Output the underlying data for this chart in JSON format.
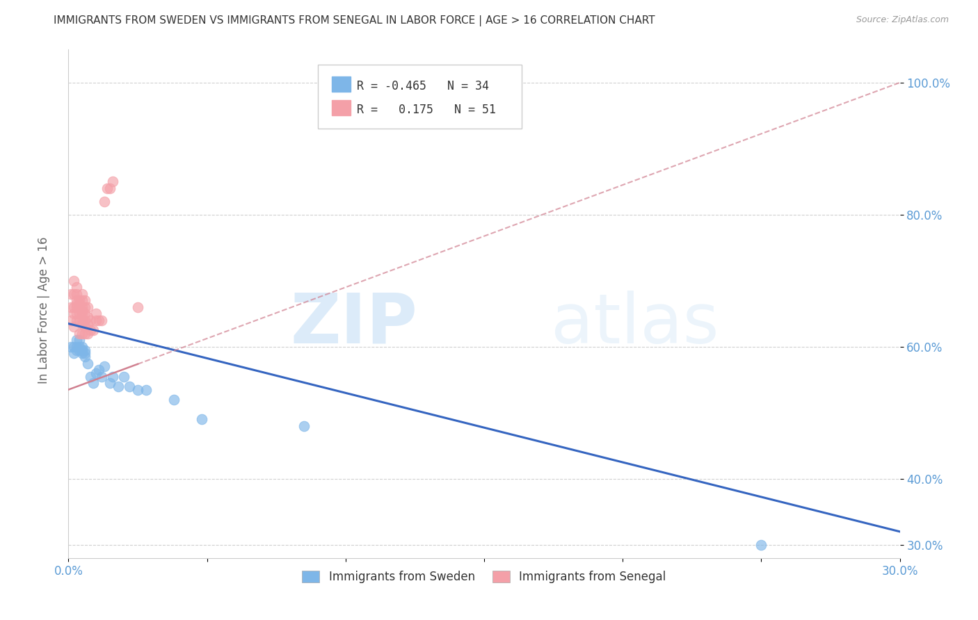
{
  "title": "IMMIGRANTS FROM SWEDEN VS IMMIGRANTS FROM SENEGAL IN LABOR FORCE | AGE > 16 CORRELATION CHART",
  "source": "Source: ZipAtlas.com",
  "ylabel": "In Labor Force | Age > 16",
  "xlim": [
    0.0,
    0.3
  ],
  "ylim": [
    0.28,
    1.05
  ],
  "xticks": [
    0.0,
    0.05,
    0.1,
    0.15,
    0.2,
    0.25,
    0.3
  ],
  "xticklabels": [
    "0.0%",
    "",
    "",
    "",
    "",
    "",
    "30.0%"
  ],
  "yticks": [
    0.3,
    0.4,
    0.6,
    0.8,
    1.0
  ],
  "yticklabels": [
    "30.0%",
    "40.0%",
    "60.0%",
    "80.0%",
    "100.0%"
  ],
  "sweden_color": "#7EB6E8",
  "senegal_color": "#F4A0A8",
  "sweden_line_color": "#3565C0",
  "senegal_line_color": "#D08090",
  "legend_R_sweden": "-0.465",
  "legend_N_sweden": "34",
  "legend_R_senegal": "0.175",
  "legend_N_senegal": "51",
  "legend_label_sweden": "Immigrants from Sweden",
  "legend_label_senegal": "Immigrants from Senegal",
  "watermark_zip": "ZIP",
  "watermark_atlas": "atlas",
  "background_color": "#ffffff",
  "grid_color": "#d0d0d0",
  "axis_label_color": "#5b9bd5",
  "title_color": "#333333",
  "sweden_line_x0": 0.0,
  "sweden_line_y0": 0.635,
  "sweden_line_x1": 0.3,
  "sweden_line_y1": 0.32,
  "senegal_line_x0": 0.0,
  "senegal_line_y0": 0.535,
  "senegal_line_x1": 0.3,
  "senegal_line_y1": 1.0,
  "sweden_scatter_x": [
    0.001,
    0.002,
    0.002,
    0.003,
    0.003,
    0.003,
    0.004,
    0.004,
    0.004,
    0.005,
    0.005,
    0.005,
    0.005,
    0.006,
    0.006,
    0.006,
    0.007,
    0.008,
    0.009,
    0.01,
    0.011,
    0.012,
    0.013,
    0.015,
    0.016,
    0.018,
    0.02,
    0.022,
    0.025,
    0.028,
    0.038,
    0.048,
    0.085,
    0.25
  ],
  "sweden_scatter_y": [
    0.6,
    0.6,
    0.59,
    0.6,
    0.595,
    0.61,
    0.595,
    0.6,
    0.61,
    0.595,
    0.6,
    0.59,
    0.595,
    0.585,
    0.59,
    0.595,
    0.575,
    0.555,
    0.545,
    0.56,
    0.565,
    0.555,
    0.57,
    0.545,
    0.555,
    0.54,
    0.555,
    0.54,
    0.535,
    0.535,
    0.52,
    0.49,
    0.48,
    0.3
  ],
  "senegal_scatter_x": [
    0.001,
    0.001,
    0.001,
    0.002,
    0.002,
    0.002,
    0.002,
    0.002,
    0.003,
    0.003,
    0.003,
    0.003,
    0.003,
    0.003,
    0.003,
    0.004,
    0.004,
    0.004,
    0.004,
    0.004,
    0.004,
    0.005,
    0.005,
    0.005,
    0.005,
    0.005,
    0.005,
    0.005,
    0.005,
    0.006,
    0.006,
    0.006,
    0.006,
    0.006,
    0.006,
    0.007,
    0.007,
    0.007,
    0.007,
    0.008,
    0.008,
    0.009,
    0.01,
    0.01,
    0.011,
    0.012,
    0.013,
    0.014,
    0.015,
    0.016,
    0.025
  ],
  "senegal_scatter_y": [
    0.64,
    0.66,
    0.68,
    0.63,
    0.65,
    0.66,
    0.68,
    0.7,
    0.64,
    0.65,
    0.66,
    0.665,
    0.67,
    0.68,
    0.69,
    0.62,
    0.64,
    0.65,
    0.66,
    0.665,
    0.67,
    0.62,
    0.635,
    0.64,
    0.65,
    0.655,
    0.66,
    0.67,
    0.68,
    0.62,
    0.63,
    0.64,
    0.65,
    0.66,
    0.67,
    0.62,
    0.635,
    0.645,
    0.66,
    0.625,
    0.64,
    0.625,
    0.64,
    0.65,
    0.64,
    0.64,
    0.82,
    0.84,
    0.84,
    0.85,
    0.66
  ]
}
